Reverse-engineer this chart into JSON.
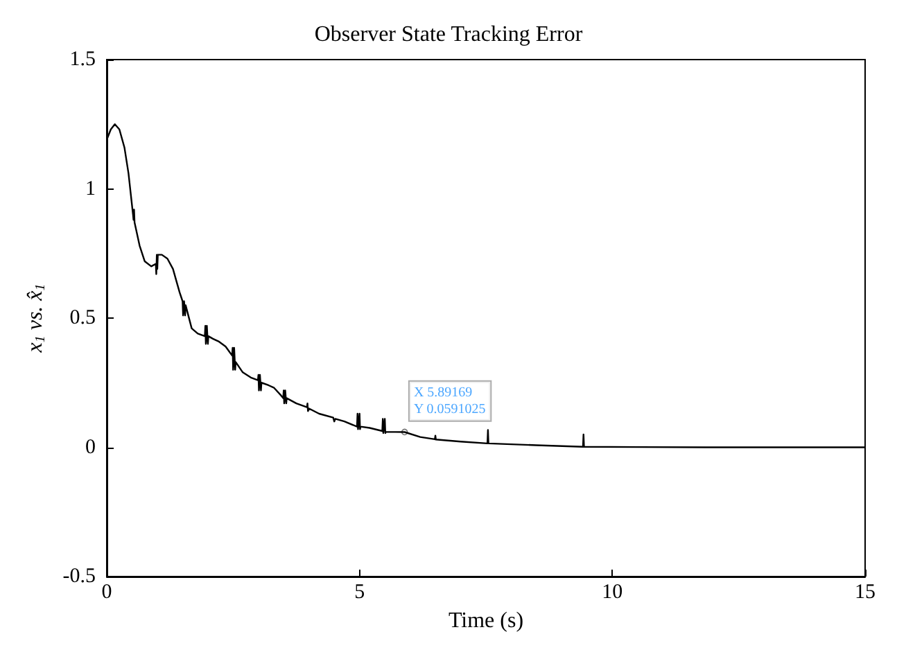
{
  "chart_data": {
    "type": "line",
    "title": "Observer State Tracking Error",
    "xlabel": "Time (s)",
    "ylabel": "x$_{1}$ vs. x̂$_{1}$",
    "x": [
      0,
      0.08,
      0.16,
      0.25,
      0.35,
      0.43,
      0.52,
      0.53,
      0.54,
      0.55,
      0.65,
      0.75,
      0.88,
      0.97,
      0.98,
      0.99,
      1.0,
      1.01,
      1.09,
      1.2,
      1.31,
      1.44,
      1.5,
      1.51,
      1.53,
      1.55,
      1.56,
      1.68,
      1.8,
      1.94,
      1.95,
      1.96,
      1.98,
      2.0,
      2.01,
      2.1,
      2.21,
      2.35,
      2.48,
      2.49,
      2.5,
      2.52,
      2.54,
      2.55,
      2.69,
      2.85,
      2.99,
      3.0,
      3.01,
      3.03,
      3.05,
      3.06,
      3.2,
      3.31,
      3.45,
      3.49,
      3.5,
      3.51,
      3.53,
      3.55,
      3.56,
      3.75,
      3.96,
      3.97,
      3.98,
      4.0,
      4.2,
      4.48,
      4.5,
      4.52,
      4.7,
      4.95,
      4.96,
      4.97,
      5.0,
      5.01,
      5.02,
      5.2,
      5.45,
      5.46,
      5.47,
      5.5,
      5.51,
      5.52,
      5.89169,
      6.2,
      6.49,
      6.5,
      6.51,
      7.0,
      7.53,
      7.54,
      7.55,
      8.5,
      9.42,
      9.43,
      9.44,
      10.5,
      12,
      13.5,
      15
    ],
    "values": [
      1.19,
      1.23,
      1.25,
      1.23,
      1.16,
      1.06,
      0.9,
      0.88,
      0.92,
      0.87,
      0.78,
      0.72,
      0.7,
      0.71,
      0.67,
      0.745,
      0.69,
      0.745,
      0.745,
      0.73,
      0.69,
      0.6,
      0.565,
      0.51,
      0.565,
      0.51,
      0.55,
      0.46,
      0.44,
      0.43,
      0.47,
      0.4,
      0.47,
      0.4,
      0.43,
      0.42,
      0.41,
      0.39,
      0.355,
      0.385,
      0.3,
      0.385,
      0.3,
      0.33,
      0.29,
      0.27,
      0.26,
      0.28,
      0.22,
      0.28,
      0.22,
      0.25,
      0.24,
      0.23,
      0.2,
      0.19,
      0.22,
      0.17,
      0.22,
      0.17,
      0.19,
      0.17,
      0.155,
      0.17,
      0.14,
      0.15,
      0.13,
      0.115,
      0.1,
      0.11,
      0.1,
      0.08,
      0.13,
      0.07,
      0.13,
      0.07,
      0.08,
      0.075,
      0.063,
      0.11,
      0.055,
      0.11,
      0.055,
      0.06,
      0.059,
      0.04,
      0.031,
      0.045,
      0.03,
      0.022,
      0.015,
      0.067,
      0.015,
      0.008,
      0.002,
      0.05,
      0.002,
      0.001,
      0,
      0,
      0
    ],
    "color": "#000000",
    "xlim": [
      0,
      15
    ],
    "xticks": [
      0,
      5,
      10,
      15
    ],
    "ylim": [
      -0.5,
      1.5
    ],
    "yticks": [
      -0.5,
      0,
      0.5,
      1,
      1.5
    ],
    "grid": false,
    "annotations": [
      {
        "text": "X 5.89169\nY 0.0591025",
        "x": 5.89169,
        "y": 0.0591025
      }
    ]
  }
}
